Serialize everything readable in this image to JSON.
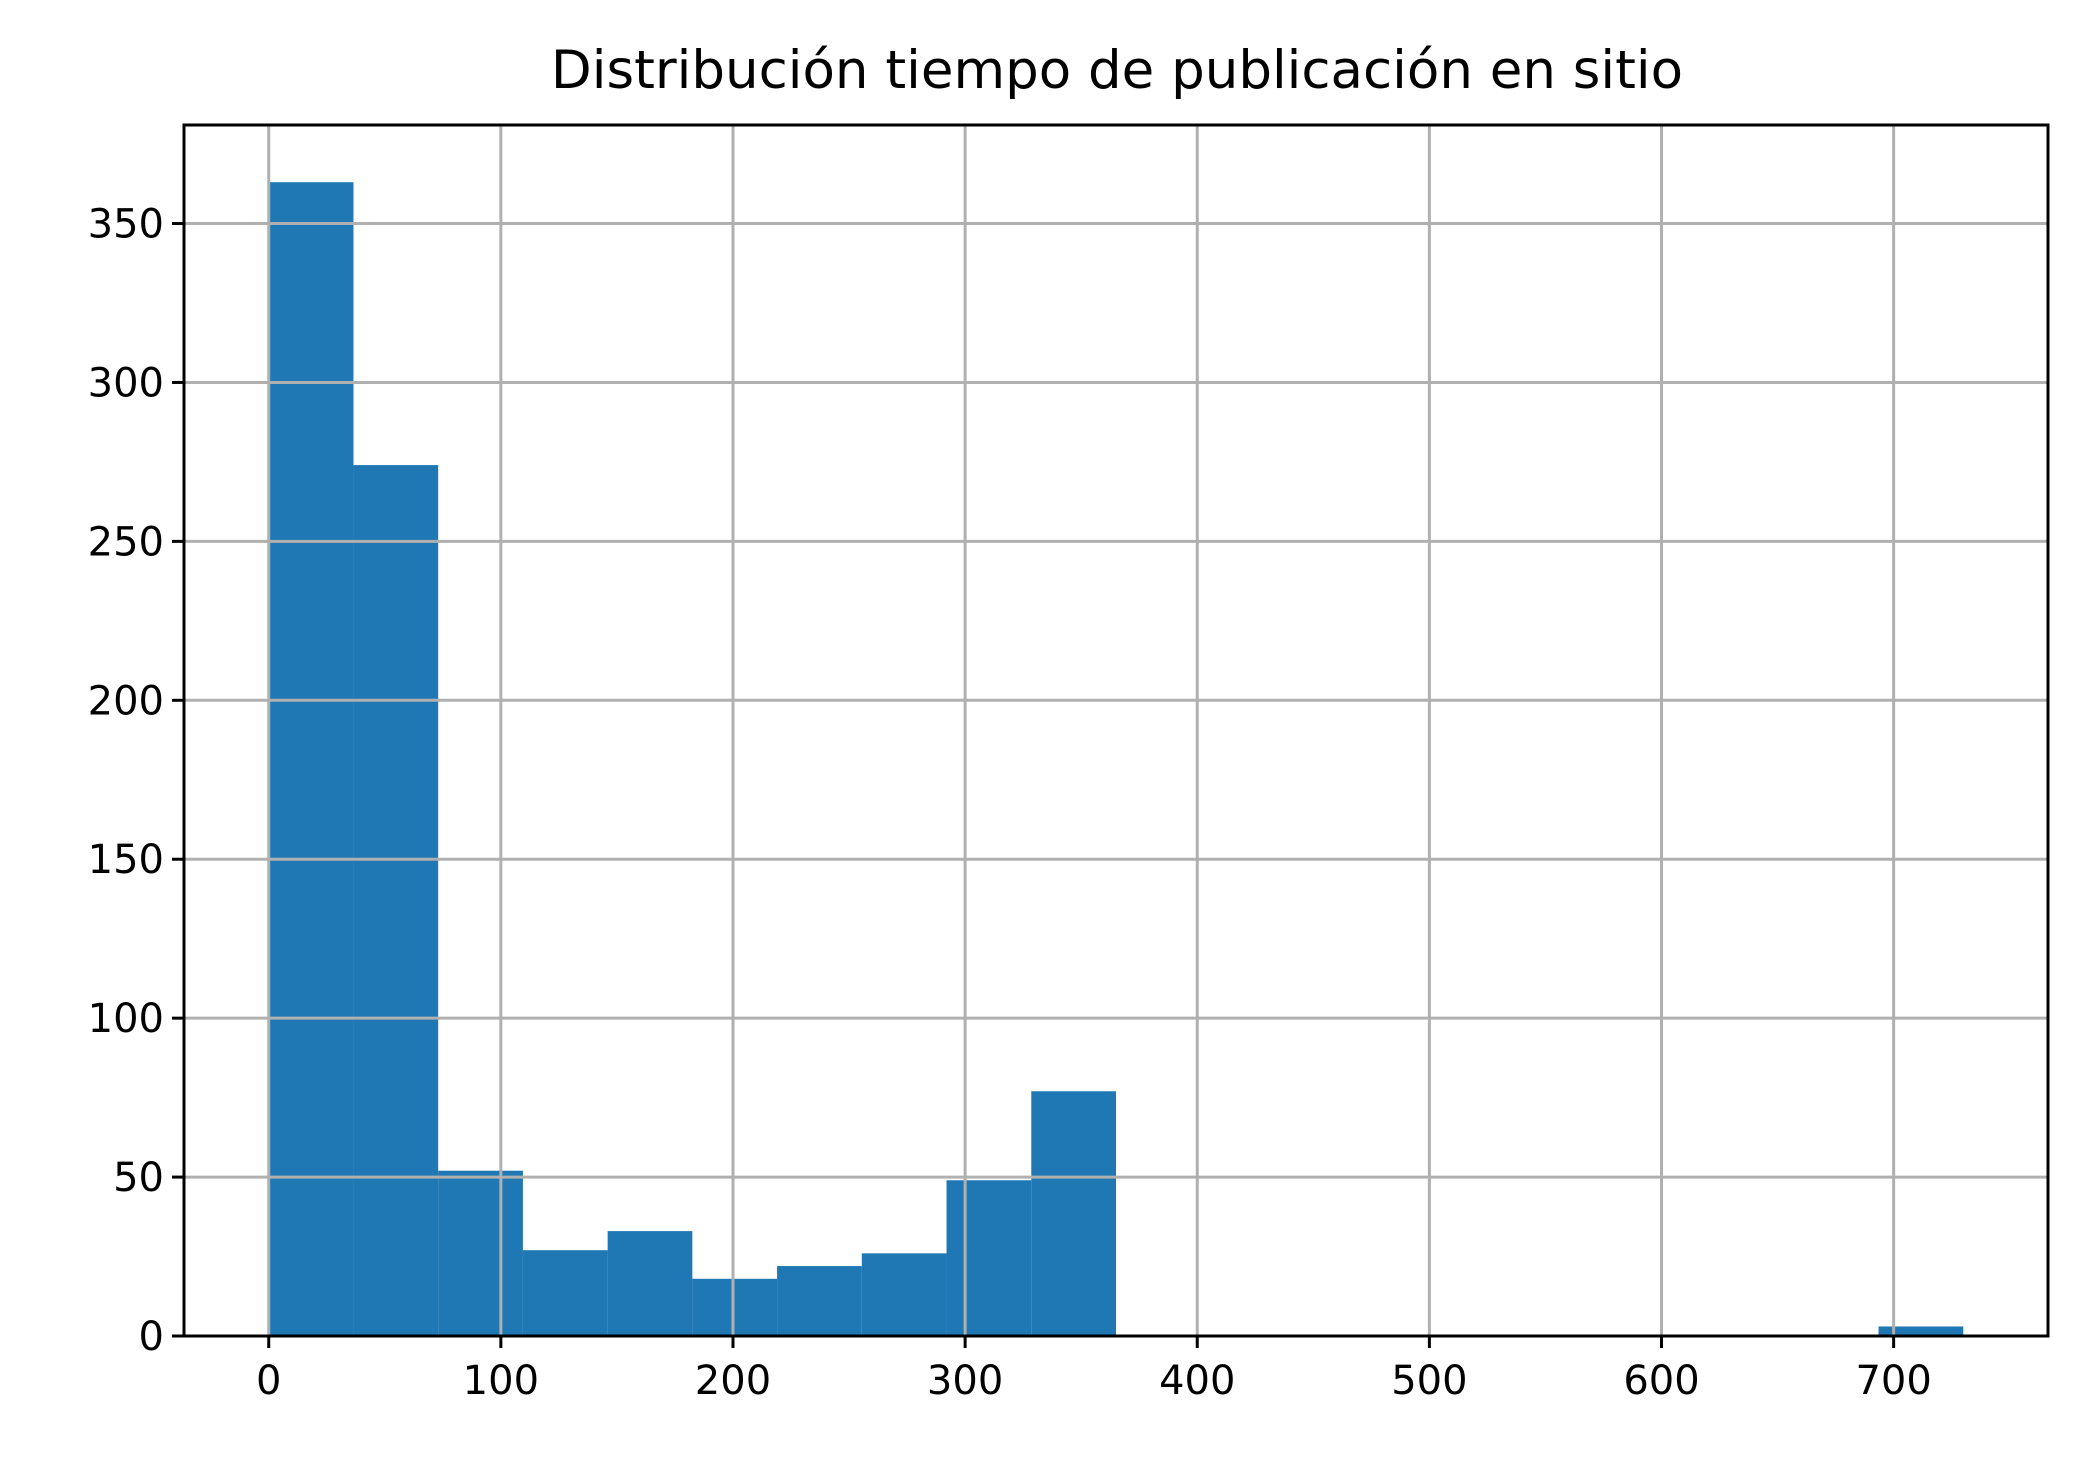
{
  "chart_data": {
    "type": "bar",
    "title": "Distribución tiempo de publicación en sitio",
    "xlabel": "",
    "ylabel": "",
    "bins": [
      {
        "start": 0,
        "end": 36.5,
        "count": 363
      },
      {
        "start": 36.5,
        "end": 73,
        "count": 274
      },
      {
        "start": 73,
        "end": 109.5,
        "count": 52
      },
      {
        "start": 109.5,
        "end": 146,
        "count": 27
      },
      {
        "start": 146,
        "end": 182.5,
        "count": 33
      },
      {
        "start": 182.5,
        "end": 219,
        "count": 18
      },
      {
        "start": 219,
        "end": 255.5,
        "count": 22
      },
      {
        "start": 255.5,
        "end": 292,
        "count": 26
      },
      {
        "start": 292,
        "end": 328.5,
        "count": 49
      },
      {
        "start": 328.5,
        "end": 365,
        "count": 77
      },
      {
        "start": 693.5,
        "end": 730,
        "count": 3
      }
    ],
    "xlim": [
      -36.5,
      766.5
    ],
    "ylim": [
      0,
      381
    ],
    "xticks": [
      0,
      100,
      200,
      300,
      400,
      500,
      600,
      700
    ],
    "yticks": [
      0,
      50,
      100,
      150,
      200,
      250,
      300,
      350
    ],
    "grid": true,
    "bar_color": "#1f77b4",
    "grid_color": "#b0b0b0"
  }
}
